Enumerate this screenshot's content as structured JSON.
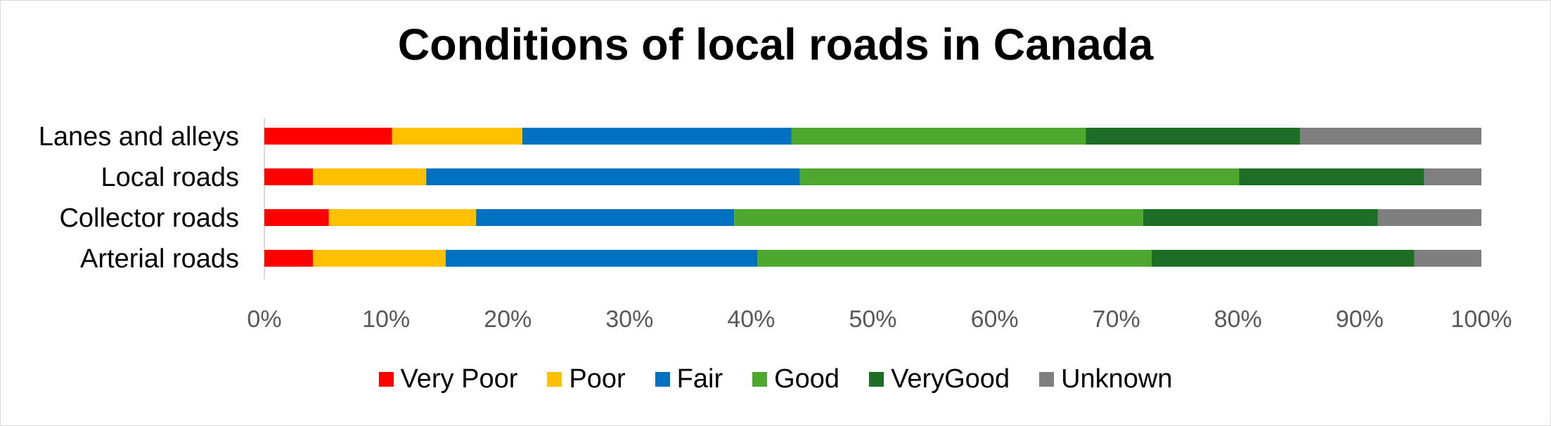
{
  "chart_data": {
    "type": "bar",
    "orientation": "horizontal",
    "stacked": "percent",
    "title": "Conditions of local roads in Canada",
    "categories": [
      "Lanes and alleys",
      "Local roads",
      "Collector roads",
      "Arterial roads"
    ],
    "x_ticks": [
      "0%",
      "10%",
      "20%",
      "30%",
      "40%",
      "50%",
      "60%",
      "70%",
      "80%",
      "90%",
      "100%"
    ],
    "xlim": [
      0,
      100
    ],
    "grid": false,
    "legend_position": "bottom",
    "series": [
      {
        "name": "Very Poor",
        "color": "#ff0000",
        "values": [
          10.5,
          4.0,
          5.3,
          4.0
        ]
      },
      {
        "name": "Poor",
        "color": "#ffc000",
        "values": [
          10.7,
          9.3,
          12.1,
          10.9
        ]
      },
      {
        "name": "Fair",
        "color": "#0070c0",
        "values": [
          22.1,
          30.7,
          21.2,
          25.6
        ]
      },
      {
        "name": "Good",
        "color": "#4ea72e",
        "values": [
          24.2,
          36.1,
          33.6,
          32.4
        ]
      },
      {
        "name": "VeryGood",
        "color": "#1e6e25",
        "values": [
          17.6,
          15.2,
          19.3,
          21.6
        ]
      },
      {
        "name": "Unknown",
        "color": "#7f7f7f",
        "values": [
          14.9,
          4.7,
          8.5,
          5.5
        ]
      }
    ]
  }
}
